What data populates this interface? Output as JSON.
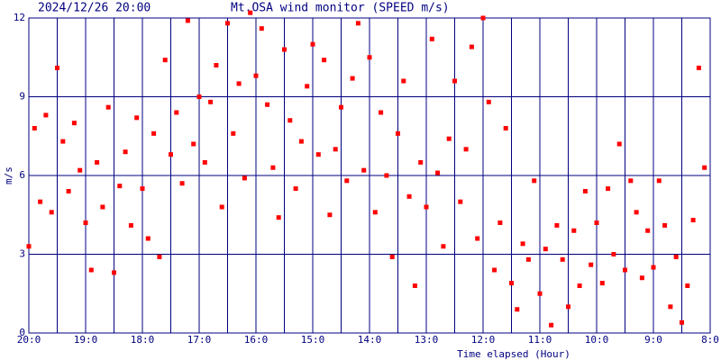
{
  "chart_data": {
    "type": "scatter",
    "date": "2024/12/26 20:00",
    "title": "Mt.OSA wind monitor (SPEED m/s)",
    "ylabel": "m/s",
    "xlabel": "Time elapsed (Hour)",
    "color": "#ff0000",
    "grid": true,
    "xlim": [
      0,
      12
    ],
    "ylim": [
      0,
      12
    ],
    "yticks": [
      0,
      3,
      6,
      9,
      12
    ],
    "xticks": [
      {
        "value": 0,
        "label": "20:0"
      },
      {
        "value": 1,
        "label": "19:0"
      },
      {
        "value": 2,
        "label": "18:0"
      },
      {
        "value": 3,
        "label": "17:0"
      },
      {
        "value": 4,
        "label": "16:0"
      },
      {
        "value": 5,
        "label": "15:0"
      },
      {
        "value": 6,
        "label": "14:0"
      },
      {
        "value": 7,
        "label": "13:0"
      },
      {
        "value": 8,
        "label": "12:0"
      },
      {
        "value": 9,
        "label": "11:0"
      },
      {
        "value": 10,
        "label": "10:0"
      },
      {
        "value": 11,
        "label": "9:0"
      },
      {
        "value": 12,
        "label": "8:0"
      }
    ],
    "xminor_ticks": [
      0.5,
      1.5,
      2.5,
      3.5,
      4.5,
      5.5,
      6.5,
      7.5,
      8.5,
      9.5,
      10.5,
      11.5
    ],
    "x": [
      0,
      0.1,
      0.2,
      0.3,
      0.4,
      0.5,
      0.6,
      0.7,
      0.8,
      0.9,
      1,
      1.1,
      1.2,
      1.3,
      1.4,
      1.5,
      1.6,
      1.7,
      1.8,
      1.9,
      2,
      2.1,
      2.2,
      2.3,
      2.4,
      2.5,
      2.6,
      2.7,
      2.8,
      2.9,
      3,
      3.1,
      3.2,
      3.3,
      3.4,
      3.5,
      3.6,
      3.7,
      3.8,
      3.9,
      4,
      4.1,
      4.2,
      4.3,
      4.4,
      4.5,
      4.6,
      4.7,
      4.8,
      4.9,
      5,
      5.1,
      5.2,
      5.3,
      5.4,
      5.5,
      5.6,
      5.7,
      5.8,
      5.9,
      6,
      6.1,
      6.2,
      6.3,
      6.4,
      6.5,
      6.6,
      6.7,
      6.8,
      6.9,
      7,
      7.1,
      7.2,
      7.3,
      7.4,
      7.5,
      7.6,
      7.7,
      7.8,
      7.9,
      8,
      8.1,
      8.2,
      8.3,
      8.4,
      8.5,
      8.6,
      8.7,
      8.8,
      8.9,
      9,
      9.1,
      9.2,
      9.3,
      9.4,
      9.5,
      9.6,
      9.7,
      9.8,
      9.9,
      10,
      10.1,
      10.2,
      10.3,
      10.4,
      10.5,
      10.6,
      10.7,
      10.8,
      10.9,
      11,
      11.1,
      11.2,
      11.3,
      11.4,
      11.5,
      11.6,
      11.7,
      11.8,
      11.9
    ],
    "values": [
      3.3,
      7.8,
      5.0,
      8.3,
      4.6,
      10.1,
      7.3,
      5.4,
      8.0,
      6.2,
      4.2,
      2.4,
      6.5,
      4.8,
      8.6,
      2.3,
      5.6,
      6.9,
      4.1,
      8.2,
      5.5,
      3.6,
      7.6,
      2.9,
      10.4,
      6.8,
      8.4,
      5.7,
      11.9,
      7.2,
      9.0,
      6.5,
      8.8,
      10.2,
      4.8,
      11.8,
      7.6,
      9.5,
      5.9,
      12.2,
      9.8,
      11.6,
      8.7,
      6.3,
      4.4,
      10.8,
      8.1,
      5.5,
      7.3,
      9.4,
      11.0,
      6.8,
      10.4,
      4.5,
      7.0,
      8.6,
      5.8,
      9.7,
      11.8,
      6.2,
      10.5,
      4.6,
      8.4,
      6.0,
      2.9,
      7.6,
      9.6,
      5.2,
      1.8,
      6.5,
      4.8,
      11.2,
      6.1,
      3.3,
      7.4,
      9.6,
      5.0,
      7.0,
      10.9,
      3.6,
      12.0,
      8.8,
      2.4,
      4.2,
      7.8,
      1.9,
      0.9,
      3.4,
      2.8,
      5.8,
      1.5,
      3.2,
      0.3,
      4.1,
      2.8,
      1.0,
      3.9,
      1.8,
      5.4,
      2.6,
      4.2,
      1.9,
      5.5,
      3.0,
      7.2,
      2.4,
      5.8,
      4.6,
      2.1,
      3.9,
      2.5,
      5.8,
      4.1,
      1.0,
      2.9,
      0.4,
      1.8,
      4.3,
      10.1,
      6.3
    ]
  }
}
